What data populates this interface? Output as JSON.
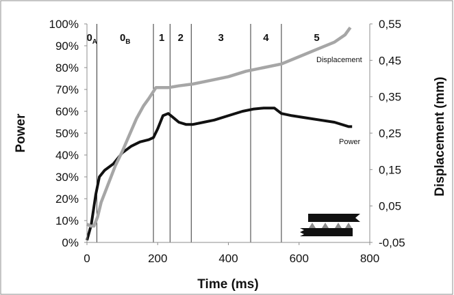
{
  "chart_data": {
    "type": "line",
    "xlabel": "Time (ms)",
    "ylabel_left": "Power",
    "ylabel_right": "Displacement (mm)",
    "xlim": [
      0,
      800
    ],
    "ylim_left": [
      0,
      100
    ],
    "ylim_right": [
      -0.05,
      0.55
    ],
    "x_ticks": [
      "0",
      "200",
      "400",
      "600",
      "800"
    ],
    "y_left_ticks": [
      "0%",
      "10%",
      "20%",
      "30%",
      "40%",
      "50%",
      "60%",
      "70%",
      "80%",
      "90%",
      "100%"
    ],
    "y_right_ticks": [
      "-0,05",
      "0,05",
      "0,15",
      "0,25",
      "0,35",
      "0,45",
      "0,55"
    ],
    "phases": [
      {
        "main": "0",
        "sub": "A",
        "start": 0,
        "end": 28
      },
      {
        "main": "0",
        "sub": "B",
        "start": 28,
        "end": 188
      },
      {
        "main": "1",
        "sub": "",
        "start": 188,
        "end": 235
      },
      {
        "main": "2",
        "sub": "",
        "start": 235,
        "end": 295
      },
      {
        "main": "3",
        "sub": "",
        "start": 295,
        "end": 463
      },
      {
        "main": "4",
        "sub": "",
        "start": 463,
        "end": 550
      },
      {
        "main": "5",
        "sub": "",
        "start": 550,
        "end": 750
      }
    ],
    "phase_boundaries": [
      28,
      188,
      235,
      295,
      463,
      550
    ],
    "series": [
      {
        "name": "Power",
        "axis": "left",
        "color": "#111111",
        "x": [
          0,
          12,
          25,
          35,
          50,
          75,
          100,
          125,
          150,
          175,
          188,
          200,
          215,
          230,
          245,
          260,
          280,
          300,
          330,
          360,
          400,
          440,
          470,
          500,
          530,
          550,
          580,
          620,
          660,
          700,
          740,
          750
        ],
        "y": [
          1,
          8,
          22,
          30,
          33,
          36,
          41,
          44,
          46,
          47,
          48,
          52,
          58,
          59,
          57,
          55,
          54,
          54,
          55,
          56,
          58,
          60,
          61,
          61.5,
          61.5,
          59,
          58,
          57,
          56,
          55,
          53,
          53
        ]
      },
      {
        "name": "Displacement",
        "axis": "right",
        "color": "#a6a6a6",
        "x": [
          0,
          10,
          20,
          30,
          40,
          60,
          80,
          100,
          120,
          140,
          160,
          175,
          185,
          195,
          210,
          230,
          260,
          300,
          350,
          400,
          450,
          500,
          550,
          600,
          650,
          700,
          730,
          745
        ],
        "y": [
          0.0,
          -0.005,
          -0.005,
          0.02,
          0.06,
          0.11,
          0.16,
          0.2,
          0.245,
          0.29,
          0.325,
          0.345,
          0.36,
          0.375,
          0.375,
          0.375,
          0.38,
          0.385,
          0.395,
          0.405,
          0.42,
          0.43,
          0.44,
          0.46,
          0.48,
          0.5,
          0.52,
          0.54
        ]
      }
    ],
    "annotations": [
      {
        "text": "Displacement",
        "series": "Displacement"
      },
      {
        "text": "Power",
        "series": "Power"
      }
    ],
    "grid": false,
    "legend": "none"
  }
}
